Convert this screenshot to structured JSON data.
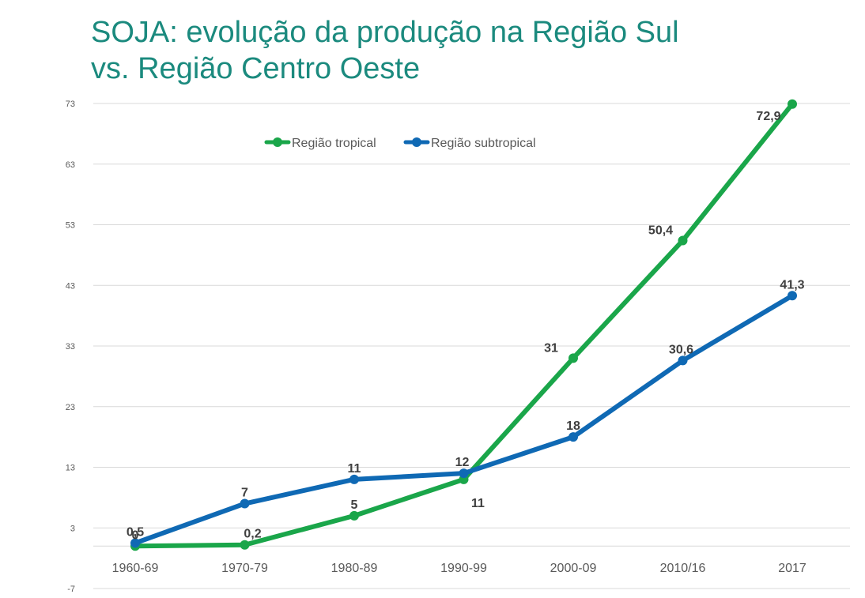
{
  "title_line1": "SOJA: evolução da produção na Região Sul",
  "title_line2": "vs. Região Centro Oeste",
  "chart_data": {
    "type": "line",
    "title": "SOJA: evolução da produção na Região Sul vs. Região Centro Oeste",
    "categories": [
      "1960-69",
      "1970-79",
      "1980-89",
      "1990-99",
      "2000-09",
      "2010/16",
      "2017"
    ],
    "y_ticks": [
      73,
      63,
      53,
      43,
      33,
      23,
      13,
      3,
      -7
    ],
    "ylim": [
      -7,
      73
    ],
    "grid": true,
    "legend_position": "top-center",
    "series": [
      {
        "name": "Região tropical",
        "color": "#1aa64a",
        "values": [
          0,
          0.2,
          5,
          11,
          31,
          50.4,
          72.9
        ],
        "labels": [
          "0",
          "0,2",
          "5",
          "11",
          "31",
          "50,4",
          "72,9"
        ]
      },
      {
        "name": "Região subtropical",
        "color": "#0f69b4",
        "values": [
          0.5,
          7,
          11,
          12,
          18,
          30.6,
          41.3
        ],
        "labels": [
          "0,5",
          "7",
          "11",
          "12",
          "18",
          "30,6",
          "41,3"
        ]
      }
    ]
  }
}
